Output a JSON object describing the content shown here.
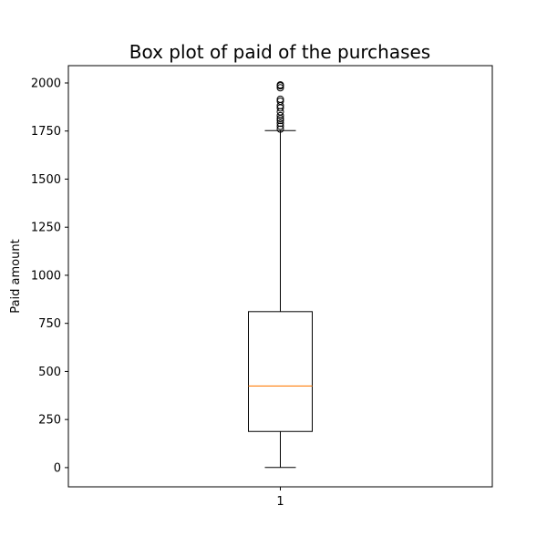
{
  "chart_data": {
    "type": "box",
    "title": "Box plot of paid of the purchases",
    "xlabel": "",
    "ylabel": "Paid amount",
    "ylim": [
      -100,
      2090
    ],
    "grid": false,
    "categories": [
      "1"
    ],
    "yticks": [
      0,
      250,
      500,
      750,
      1000,
      1250,
      1500,
      1750,
      2000
    ],
    "ytick_labels": [
      "0",
      "250",
      "500",
      "750",
      "1000",
      "1250",
      "1500",
      "1750",
      "2000"
    ],
    "boxes": [
      {
        "category": "1",
        "whisker_low": 1,
        "q1": 188,
        "median": 424,
        "q3": 811,
        "whisker_high": 1752,
        "outliers": [
          1760,
          1775,
          1790,
          1805,
          1815,
          1830,
          1850,
          1870,
          1882,
          1905,
          1915,
          1975,
          1985,
          1990
        ]
      }
    ],
    "colors": {
      "box": "#000000",
      "median": "#ff7f0e",
      "outlier": "#000000"
    }
  }
}
